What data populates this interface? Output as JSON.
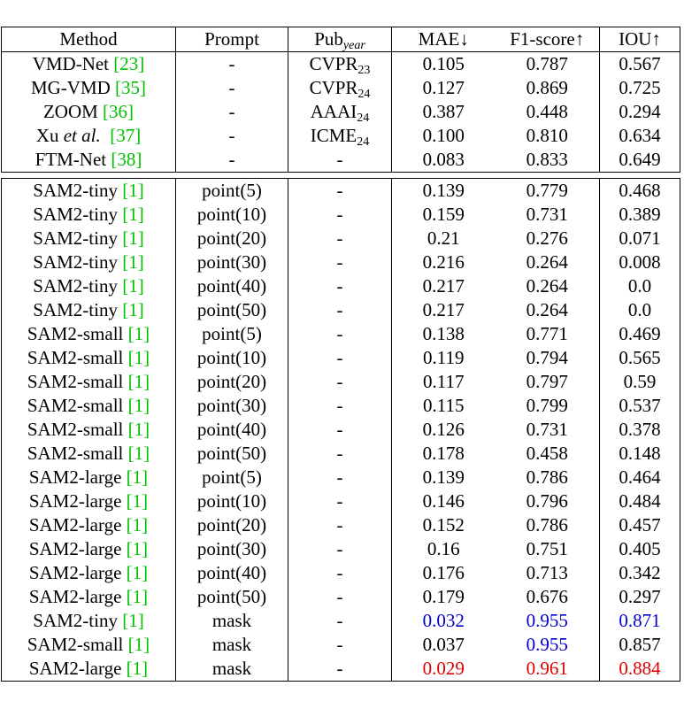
{
  "headers": {
    "method": "Method",
    "prompt": "Prompt",
    "pub": "Pub",
    "pub_sub": "year",
    "mae": "MAE↓",
    "f1": "F1-score↑",
    "iou": "IOU↑"
  },
  "prior_methods": [
    {
      "name": "VMD-Net ",
      "cite": "[23]",
      "prompt": "-",
      "pub": "CVPR",
      "pub_sub": "23",
      "mae": "0.105",
      "f1": "0.787",
      "iou": "0.567"
    },
    {
      "name": "MG-VMD ",
      "cite": "[35]",
      "prompt": "-",
      "pub": "CVPR",
      "pub_sub": "24",
      "mae": "0.127",
      "f1": "0.869",
      "iou": "0.725"
    },
    {
      "name": "ZOOM ",
      "cite": "[36]",
      "prompt": "-",
      "pub": "AAAI",
      "pub_sub": "24",
      "mae": "0.387",
      "f1": "0.448",
      "iou": "0.294"
    },
    {
      "name": "Xu ",
      "name_it": "et al.",
      "cite": "[37]",
      "prompt": "-",
      "pub": "ICME",
      "pub_sub": "24",
      "mae": "0.100",
      "f1": "0.810",
      "iou": "0.634"
    },
    {
      "name": "FTM-Net ",
      "cite": "[38]",
      "prompt": "-",
      "pub": "-",
      "pub_sub": "",
      "mae": "0.083",
      "f1": "0.833",
      "iou": "0.649"
    }
  ],
  "sam_rows": [
    {
      "name": "SAM2-tiny ",
      "cite": "[1]",
      "prompt": "point(5)",
      "pub": "-",
      "mae": "0.139",
      "f1": "0.779",
      "iou": "0.468"
    },
    {
      "name": "SAM2-tiny ",
      "cite": "[1]",
      "prompt": "point(10)",
      "pub": "-",
      "mae": "0.159",
      "f1": "0.731",
      "iou": "0.389"
    },
    {
      "name": "SAM2-tiny ",
      "cite": "[1]",
      "prompt": "point(20)",
      "pub": "-",
      "mae": "0.21",
      "f1": "0.276",
      "iou": "0.071"
    },
    {
      "name": "SAM2-tiny ",
      "cite": "[1]",
      "prompt": "point(30)",
      "pub": "-",
      "mae": "0.216",
      "f1": "0.264",
      "iou": "0.008"
    },
    {
      "name": "SAM2-tiny ",
      "cite": "[1]",
      "prompt": "point(40)",
      "pub": "-",
      "mae": "0.217",
      "f1": "0.264",
      "iou": "0.0"
    },
    {
      "name": "SAM2-tiny ",
      "cite": "[1]",
      "prompt": "point(50)",
      "pub": "-",
      "mae": "0.217",
      "f1": "0.264",
      "iou": "0.0"
    },
    {
      "name": "SAM2-small ",
      "cite": "[1]",
      "prompt": "point(5)",
      "pub": "-",
      "mae": "0.138",
      "f1": "0.771",
      "iou": "0.469"
    },
    {
      "name": "SAM2-small ",
      "cite": "[1]",
      "prompt": "point(10)",
      "pub": "-",
      "mae": "0.119",
      "f1": "0.794",
      "iou": "0.565"
    },
    {
      "name": "SAM2-small ",
      "cite": "[1]",
      "prompt": "point(20)",
      "pub": "-",
      "mae": "0.117",
      "f1": "0.797",
      "iou": "0.59"
    },
    {
      "name": "SAM2-small ",
      "cite": "[1]",
      "prompt": "point(30)",
      "pub": "-",
      "mae": "0.115",
      "f1": "0.799",
      "iou": "0.537"
    },
    {
      "name": "SAM2-small ",
      "cite": "[1]",
      "prompt": "point(40)",
      "pub": "-",
      "mae": "0.126",
      "f1": "0.731",
      "iou": "0.378"
    },
    {
      "name": "SAM2-small ",
      "cite": "[1]",
      "prompt": "point(50)",
      "pub": "-",
      "mae": "0.178",
      "f1": "0.458",
      "iou": "0.148"
    },
    {
      "name": "SAM2-large ",
      "cite": "[1]",
      "prompt": "point(5)",
      "pub": "-",
      "mae": "0.139",
      "f1": "0.786",
      "iou": "0.464"
    },
    {
      "name": "SAM2-large ",
      "cite": "[1]",
      "prompt": "point(10)",
      "pub": "-",
      "mae": "0.146",
      "f1": "0.796",
      "iou": "0.484"
    },
    {
      "name": "SAM2-large ",
      "cite": "[1]",
      "prompt": "point(20)",
      "pub": "-",
      "mae": "0.152",
      "f1": "0.786",
      "iou": "0.457"
    },
    {
      "name": "SAM2-large ",
      "cite": "[1]",
      "prompt": "point(30)",
      "pub": "-",
      "mae": "0.16",
      "f1": "0.751",
      "iou": "0.405"
    },
    {
      "name": "SAM2-large ",
      "cite": "[1]",
      "prompt": "point(40)",
      "pub": "-",
      "mae": "0.176",
      "f1": "0.713",
      "iou": "0.342"
    },
    {
      "name": "SAM2-large ",
      "cite": "[1]",
      "prompt": "point(50)",
      "pub": "-",
      "mae": "0.179",
      "f1": "0.676",
      "iou": "0.297"
    },
    {
      "name": "SAM2-tiny ",
      "cite": "[1]",
      "prompt": "mask",
      "pub": "-",
      "mae": "0.032",
      "f1": "0.955",
      "iou": "0.871",
      "mae_color": "blue",
      "f1_color": "blue",
      "iou_color": "blue"
    },
    {
      "name": "SAM2-small ",
      "cite": "[1]",
      "prompt": "mask",
      "pub": "-",
      "mae": "0.037",
      "f1": "0.955",
      "iou": "0.857",
      "f1_color": "blue"
    },
    {
      "name": "SAM2-large ",
      "cite": "[1]",
      "prompt": "mask",
      "pub": "-",
      "mae": "0.029",
      "f1": "0.961",
      "iou": "0.884",
      "mae_color": "red",
      "f1_color": "red",
      "iou_color": "red"
    }
  ],
  "colors": {
    "cite": "#00c000",
    "best": "#e00000",
    "second": "#0000cc"
  }
}
